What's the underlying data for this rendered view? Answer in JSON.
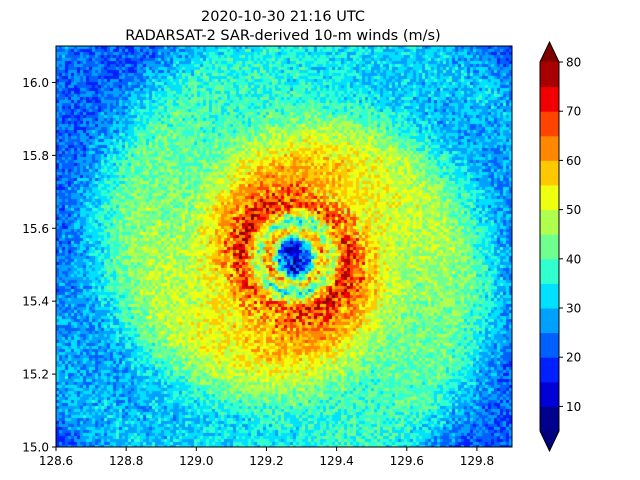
{
  "chart_data": {
    "type": "heatmap",
    "title": "2020-10-30 21:16 UTC",
    "subtitle": "RADARSAT-2 SAR-derived 10-m winds (m/s)",
    "xlabel": "",
    "ylabel": "",
    "xlim": [
      128.6,
      129.9
    ],
    "ylim": [
      15.0,
      16.1
    ],
    "x_ticks": [
      "128.6",
      "128.8",
      "129.0",
      "129.2",
      "129.4",
      "129.6",
      "129.8"
    ],
    "y_ticks": [
      "15.0",
      "15.2",
      "15.4",
      "15.6",
      "15.8",
      "16.0"
    ],
    "grid": false,
    "eye_center": {
      "lon": 129.28,
      "lat": 15.52
    },
    "radial_profile_ms": [
      {
        "r_deg": 0.0,
        "wind": 12
      },
      {
        "r_deg": 0.04,
        "wind": 22
      },
      {
        "r_deg": 0.07,
        "wind": 60
      },
      {
        "r_deg": 0.1,
        "wind": 40
      },
      {
        "r_deg": 0.14,
        "wind": 70
      },
      {
        "r_deg": 0.2,
        "wind": 60
      },
      {
        "r_deg": 0.3,
        "wind": 50
      },
      {
        "r_deg": 0.45,
        "wind": 40
      },
      {
        "r_deg": 0.6,
        "wind": 30
      },
      {
        "r_deg": 0.8,
        "wind": 22
      }
    ],
    "colorbar": {
      "min": 5,
      "max": 80,
      "step": 5,
      "extend": "both",
      "tick_labels": [
        "10",
        "20",
        "30",
        "40",
        "50",
        "60",
        "70",
        "80"
      ],
      "colors": [
        "#00008f",
        "#0000d6",
        "#0020ff",
        "#0060ff",
        "#00a0ff",
        "#00e0ff",
        "#30ffcf",
        "#70ff8f",
        "#b0ff4f",
        "#efff10",
        "#ffc800",
        "#ff8800",
        "#ff4400",
        "#f00000",
        "#a80000"
      ],
      "under_color": "#00007f",
      "over_color": "#800000"
    }
  }
}
